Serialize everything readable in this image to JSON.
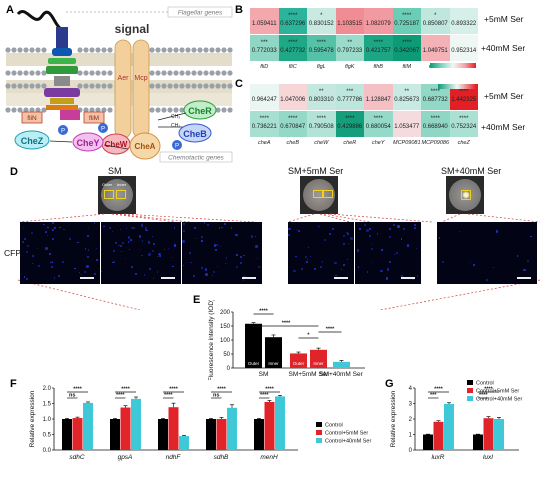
{
  "panels": {
    "A": "A",
    "B": "B",
    "C": "C",
    "D": "D",
    "E": "E",
    "F": "F",
    "G": "G"
  },
  "panel_a": {
    "signal": "signal",
    "flagellar_genes": "Flagellar genes",
    "chemotactic_genes": "Chemotactic genes",
    "aer": "Aer",
    "mcp": "Mcp",
    "chew": "CheW",
    "chea": "CheA",
    "cher": "CheR",
    "cheb": "CheB",
    "chez": "CheZ",
    "chey": "CheY",
    "flin": "fliN",
    "flim": "fliM",
    "p": "P",
    "ch3a": "CH₃",
    "ch3b": "CH₃"
  },
  "heatmap_b": {
    "columns": [
      "fliD",
      "fliC",
      "flgL",
      "flgK",
      "flhB",
      "fliM",
      "motA",
      "motB"
    ],
    "rows": [
      {
        "label": "+5mM Ser",
        "values": [
          "1.059411",
          "0.637296",
          "0.830152",
          "1.103515",
          "1.082079",
          "0.725187",
          "0.850807",
          "0.893322"
        ],
        "stars": [
          "",
          "****",
          "*",
          "",
          "",
          "****",
          "*",
          ""
        ],
        "colors": [
          "#f2a8ad",
          "#2bb39b",
          "#c9e9e1",
          "#f08c93",
          "#f29aa1",
          "#6ccdb6",
          "#bfe7de",
          "#d6efe9"
        ]
      },
      {
        "label": "+40mM Ser",
        "values": [
          "0.772033",
          "0.427732",
          "0.595478",
          "0.797233",
          "0.421757",
          "0.342067",
          "1.049751",
          "0.952314"
        ],
        "stars": [
          "***",
          "****",
          "****",
          "**",
          "****",
          "****",
          "",
          ""
        ],
        "colors": [
          "#8fd6c4",
          "#1ea886",
          "#55c2a8",
          "#9adbc9",
          "#1ca684",
          "#0d9b76",
          "#f3b2b6",
          "#eff7f4"
        ]
      }
    ],
    "legend_ticks": [
      "0.5",
      "0.6",
      "0.7",
      "0.8",
      "0.9",
      "1.0",
      "1.1"
    ]
  },
  "heatmap_c": {
    "columns": [
      "cheA",
      "cheB",
      "cheW",
      "cheR",
      "cheY",
      "MCP09081",
      "MCP09086",
      "cheZ"
    ],
    "rows": [
      {
        "label": "+5mM Ser",
        "values": [
          "0.964247",
          "1.047006",
          "0.803310",
          "0.777786",
          "1.128847",
          "0.825673",
          "0.687732",
          "1.442325"
        ],
        "stars": [
          "",
          "",
          "**",
          "***",
          "",
          "**",
          "****",
          "****"
        ],
        "colors": [
          "#eaf6f2",
          "#f7d6d8",
          "#c4e8df",
          "#bde6dc",
          "#f4c0c4",
          "#c9eae2",
          "#92d8c6",
          "#e31f26"
        ]
      },
      {
        "label": "+40mM Ser",
        "values": [
          "0.736221",
          "0.670847",
          "0.790508",
          "0.429886",
          "0.680054",
          "1.053477",
          "0.668940",
          "0.752324"
        ],
        "stars": [
          "****",
          "****",
          "****",
          "****",
          "****",
          "",
          "****",
          "****"
        ],
        "colors": [
          "#a7dfd0",
          "#94d9c7",
          "#b3e3d7",
          "#149e7b",
          "#95d9c8",
          "#f4dcde",
          "#8fd6c4",
          "#abe1d3"
        ]
      }
    ],
    "legend_ticks": [
      "0.5",
      "1.0",
      "1.5"
    ]
  },
  "panel_d": {
    "sm": "SM",
    "sm5": "SM+5mM Ser",
    "sm40": "SM+40mM Ser",
    "outer": "Outer",
    "inner": "Inner",
    "cfp": "CFP"
  },
  "chart_data": [
    {
      "type": "bar",
      "panel": "E",
      "ylabel": "Fluorescence intensity (IOD)",
      "categories": [
        "SM",
        "SM+5mM Ser",
        "SM+40mM Ser"
      ],
      "series": [
        {
          "name": "Outer",
          "values": [
            158,
            52,
            null
          ],
          "errors": [
            4,
            5,
            null
          ],
          "colors": [
            "#000000",
            "#e0242a",
            null
          ]
        },
        {
          "name": "Inner",
          "values": [
            110,
            65,
            22
          ],
          "errors": [
            8,
            6,
            5
          ],
          "colors": [
            "#000000",
            "#e0242a",
            "#3ec8d8"
          ]
        }
      ],
      "bar_labels": [
        "Outer",
        "Inner",
        "Inner",
        "Outer"
      ],
      "ylim": [
        0,
        200
      ],
      "yticks": [
        0,
        50,
        100,
        150,
        200
      ],
      "significance": [
        "****",
        "****",
        "*",
        "****"
      ]
    },
    {
      "type": "bar",
      "panel": "F",
      "ylabel": "Relative expression",
      "categories": [
        "sdhC",
        "gpsA",
        "ndhF",
        "sdhB",
        "menH"
      ],
      "series": [
        {
          "name": "Control",
          "color": "#000000",
          "values": [
            1.0,
            1.0,
            1.0,
            1.0,
            1.0
          ],
          "errors": [
            0.02,
            0.02,
            0.02,
            0.02,
            0.02
          ]
        },
        {
          "name": "Control+5mM Ser",
          "color": "#e0242a",
          "values": [
            1.03,
            1.37,
            1.38,
            1.0,
            1.55
          ],
          "errors": [
            0.03,
            0.06,
            0.13,
            0.05,
            0.05
          ]
        },
        {
          "name": "Control+40mM Ser",
          "color": "#3ec8d8",
          "values": [
            1.52,
            1.65,
            0.45,
            1.36,
            1.73
          ],
          "errors": [
            0.03,
            0.06,
            0.02,
            0.1,
            0.03
          ]
        }
      ],
      "ylim": [
        0,
        2.0
      ],
      "yticks": [
        0.0,
        0.5,
        1.0,
        1.5,
        2.0
      ],
      "significance": [
        [
          "****",
          "ns"
        ],
        [
          "****",
          "****"
        ],
        [
          "****",
          "****"
        ],
        [
          "****",
          "ns"
        ],
        [
          "****",
          "****"
        ]
      ]
    },
    {
      "type": "bar",
      "panel": "G",
      "ylabel": "Relative expression",
      "categories": [
        "luxR",
        "luxI"
      ],
      "series": [
        {
          "name": "Control",
          "color": "#000000",
          "values": [
            1.0,
            1.0
          ],
          "errors": [
            0.02,
            0.02
          ]
        },
        {
          "name": "Control+5mM Ser",
          "color": "#e0242a",
          "values": [
            1.82,
            2.05
          ],
          "errors": [
            0.07,
            0.1
          ]
        },
        {
          "name": "Control+40mM Ser",
          "color": "#3ec8d8",
          "values": [
            2.97,
            2.0
          ],
          "errors": [
            0.08,
            0.1
          ]
        }
      ],
      "ylim": [
        0,
        4
      ],
      "yticks": [
        0,
        1,
        2,
        3,
        4
      ],
      "significance": [
        [
          "****",
          "***"
        ],
        [
          "****",
          "****"
        ]
      ]
    }
  ]
}
